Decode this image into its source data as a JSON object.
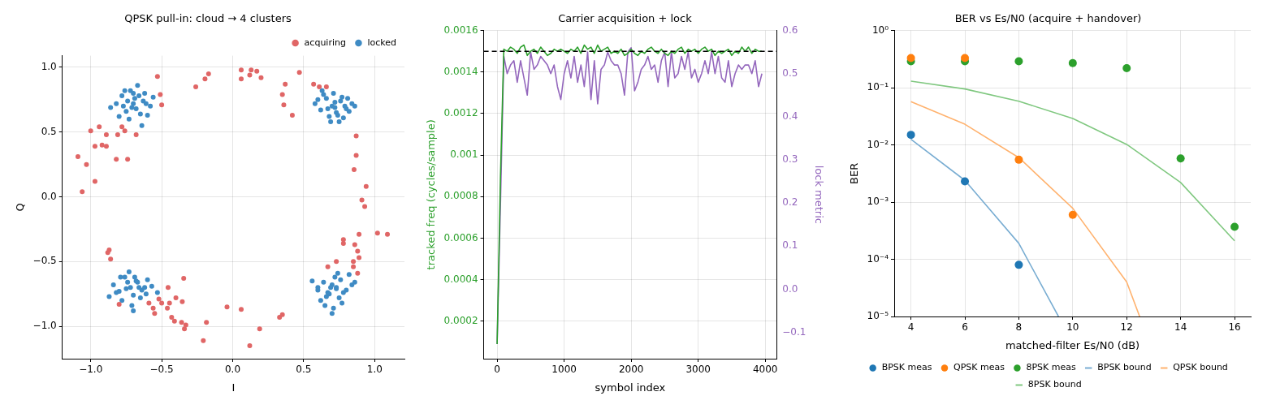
{
  "chart_data": [
    {
      "type": "scatter",
      "title": "QPSK pull-in: cloud → 4 clusters",
      "xlabel": "I",
      "ylabel": "Q",
      "xlim": [
        -1.2,
        1.21
      ],
      "ylim": [
        -1.25,
        1.09
      ],
      "xticks": [
        {
          "value": -1,
          "label": "−1.0"
        },
        {
          "value": -0.5,
          "label": "−0.5"
        },
        {
          "value": 0,
          "label": "0.0"
        },
        {
          "value": 0.5,
          "label": "0.5"
        },
        {
          "value": 1,
          "label": "1.0"
        }
      ],
      "yticks": [
        {
          "value": -1,
          "label": "−1.0"
        },
        {
          "value": -0.5,
          "label": "−0.5"
        },
        {
          "value": 0,
          "label": "0.0"
        },
        {
          "value": 0.5,
          "label": "0.5"
        },
        {
          "value": 1,
          "label": "1.0"
        }
      ],
      "grid": true,
      "legend": "top right",
      "marker": "circle",
      "series": [
        {
          "name": "acquiring",
          "color": "#e06666",
          "x": [
            -0.53,
            -0.26,
            -0.195,
            -0.17,
            0.06,
            0.13,
            0.06,
            0.12,
            0.17,
            0.2,
            0.37,
            0.35,
            0.36,
            0.42,
            0.47,
            0.87,
            0.87,
            0.855,
            0.94,
            0.91,
            0.93,
            0.89,
            1.02,
            1.09,
            0.78,
            0.78,
            0.86,
            0.88,
            0.89,
            0.85,
            0.85,
            0.88,
            0.73,
            0.67,
            -1.0,
            -0.94,
            -0.89,
            -0.97,
            -0.92,
            -0.89,
            -1.09,
            -1.03,
            -0.97,
            -1.06,
            -0.82,
            -0.74,
            -0.81,
            -0.76,
            -0.68,
            -0.78,
            -0.5,
            -0.51,
            -0.88,
            -0.87,
            -0.86,
            -0.345,
            -0.455,
            -0.4,
            -0.355,
            -0.52,
            -0.5,
            -0.445,
            -0.56,
            -0.55,
            -0.46,
            -0.43,
            -0.41,
            -0.36,
            -0.33,
            -0.34,
            -0.185,
            -0.207,
            -0.04,
            0.06,
            0.12,
            0.19,
            0.33,
            0.35,
            -0.8,
            -0.59,
            0.61,
            0.66,
            0.57
          ],
          "values": [
            0.93,
            0.85,
            0.91,
            0.95,
            0.98,
            0.98,
            0.91,
            0.94,
            0.97,
            0.92,
            0.87,
            0.79,
            0.71,
            0.63,
            0.96,
            0.47,
            0.32,
            0.21,
            0.08,
            -0.025,
            -0.075,
            -0.29,
            -0.28,
            -0.29,
            -0.33,
            -0.36,
            -0.37,
            -0.42,
            -0.47,
            -0.5,
            -0.54,
            -0.59,
            -0.5,
            -0.54,
            0.51,
            0.54,
            0.48,
            0.39,
            0.4,
            0.39,
            0.31,
            0.25,
            0.12,
            0.04,
            0.29,
            0.29,
            0.48,
            0.51,
            0.48,
            0.54,
            0.71,
            0.79,
            -0.43,
            -0.41,
            -0.48,
            -0.63,
            -0.7,
            -0.78,
            -0.81,
            -0.79,
            -0.82,
            -0.82,
            -0.86,
            -0.9,
            -0.86,
            -0.93,
            -0.96,
            -0.97,
            -0.99,
            -1.02,
            -0.97,
            -1.11,
            -0.85,
            -0.87,
            -1.15,
            -1.02,
            -0.93,
            -0.91,
            -0.83,
            -0.82,
            0.85,
            0.85,
            0.87
          ]
        },
        {
          "name": "locked",
          "color": "#3f8bc4",
          "x": [
            -0.82,
            -0.78,
            -0.75,
            -0.72,
            -0.7,
            -0.68,
            -0.66,
            -0.63,
            -0.6,
            -0.58,
            -0.77,
            -0.73,
            -0.69,
            -0.65,
            -0.62,
            -0.8,
            -0.74,
            -0.67,
            -0.61,
            -0.71,
            -0.64,
            -0.76,
            -0.7,
            -0.56,
            -0.86,
            0.58,
            0.62,
            0.66,
            0.7,
            0.73,
            0.76,
            0.8,
            0.84,
            0.64,
            0.68,
            0.72,
            0.75,
            0.79,
            0.82,
            0.6,
            0.67,
            0.71,
            0.77,
            0.74,
            0.69,
            0.86,
            0.63,
            0.78,
            0.81,
            0.72,
            -0.84,
            -0.8,
            -0.76,
            -0.72,
            -0.7,
            -0.67,
            -0.64,
            -0.6,
            -0.57,
            -0.78,
            -0.74,
            -0.69,
            -0.65,
            -0.62,
            -0.82,
            -0.71,
            -0.66,
            -0.75,
            -0.68,
            -0.73,
            -0.53,
            -0.87,
            -0.7,
            -0.61,
            -0.79,
            0.56,
            0.6,
            0.64,
            0.67,
            0.7,
            0.73,
            0.76,
            0.8,
            0.84,
            0.62,
            0.66,
            0.69,
            0.72,
            0.75,
            0.78,
            0.65,
            0.71,
            0.74,
            0.68,
            0.82,
            0.77,
            0.7,
            0.6,
            0.86,
            0.73
          ],
          "values": [
            0.72,
            0.78,
            0.66,
            0.82,
            0.72,
            0.68,
            0.78,
            0.74,
            0.63,
            0.7,
            0.7,
            0.6,
            0.76,
            0.64,
            0.8,
            0.62,
            0.74,
            0.86,
            0.72,
            0.69,
            0.55,
            0.82,
            0.8,
            0.77,
            0.69,
            0.72,
            0.67,
            0.76,
            0.7,
            0.65,
            0.74,
            0.68,
            0.72,
            0.79,
            0.62,
            0.73,
            0.58,
            0.7,
            0.66,
            0.75,
            0.68,
            0.8,
            0.77,
            0.63,
            0.58,
            0.7,
            0.82,
            0.61,
            0.76,
            0.69,
            -0.68,
            -0.73,
            -0.62,
            -0.7,
            -0.76,
            -0.66,
            -0.72,
            -0.64,
            -0.69,
            -0.8,
            -0.66,
            -0.62,
            -0.78,
            -0.7,
            -0.74,
            -0.84,
            -0.7,
            -0.71,
            -0.65,
            -0.58,
            -0.74,
            -0.77,
            -0.88,
            -0.75,
            -0.62,
            -0.65,
            -0.7,
            -0.66,
            -0.74,
            -0.68,
            -0.71,
            -0.64,
            -0.72,
            -0.68,
            -0.8,
            -0.77,
            -0.7,
            -0.62,
            -0.78,
            -0.74,
            -0.84,
            -0.86,
            -0.59,
            -0.75,
            -0.6,
            -0.82,
            -0.9,
            -0.72,
            -0.66,
            -0.7
          ]
        }
      ]
    },
    {
      "type": "line",
      "title": "Carrier acquisition + lock",
      "xlabel": "symbol index",
      "ylabel": "tracked freq (cycles/sample)",
      "y2label": "lock metric",
      "xlim": [
        -200,
        4170
      ],
      "xticks": [
        0,
        1000,
        2000,
        3000,
        4000
      ],
      "ylim": [
        2e-05,
        0.0016
      ],
      "yticks": [
        0.0002,
        0.0004,
        0.0006,
        0.0008,
        0.001,
        0.0012,
        0.0014,
        0.0016
      ],
      "y2lim": [
        -0.161,
        0.6
      ],
      "y2ticks": [
        {
          "value": -0.1,
          "label": "−0.1"
        },
        {
          "value": 0,
          "label": "0.0"
        },
        {
          "value": 0.1,
          "label": "0.1"
        },
        {
          "value": 0.2,
          "label": "0.2"
        },
        {
          "value": 0.3,
          "label": "0.3"
        },
        {
          "value": 0.4,
          "label": "0.4"
        },
        {
          "value": 0.5,
          "label": "0.5"
        },
        {
          "value": 0.6,
          "label": "0.6"
        }
      ],
      "grid": true,
      "x": [
        0,
        50,
        100,
        150,
        200,
        250,
        300,
        350,
        400,
        450,
        500,
        550,
        600,
        650,
        700,
        750,
        800,
        850,
        900,
        950,
        1000,
        1050,
        1100,
        1150,
        1200,
        1250,
        1300,
        1350,
        1400,
        1450,
        1500,
        1550,
        1600,
        1650,
        1700,
        1750,
        1800,
        1850,
        1900,
        1950,
        2000,
        2050,
        2100,
        2150,
        2200,
        2250,
        2300,
        2350,
        2400,
        2450,
        2500,
        2550,
        2600,
        2650,
        2700,
        2750,
        2800,
        2850,
        2900,
        2950,
        3000,
        3050,
        3100,
        3150,
        3200,
        3250,
        3300,
        3350,
        3400,
        3450,
        3500,
        3550,
        3600,
        3650,
        3700,
        3750,
        3800,
        3850,
        3900,
        3950
      ],
      "ref_lines": [
        {
          "axis": "y",
          "value": 0.0015,
          "color": "#000000",
          "line_style": "dashed"
        }
      ],
      "series": [
        {
          "color": "#2ca02c",
          "axis": "y",
          "values": [
            9e-05,
            0.0009,
            0.00151,
            0.0015,
            0.00152,
            0.00151,
            0.00149,
            0.00152,
            0.00153,
            0.00148,
            0.0015,
            0.00151,
            0.00149,
            0.00152,
            0.0015,
            0.00148,
            0.00149,
            0.00151,
            0.0015,
            0.00151,
            0.0015,
            0.00149,
            0.00151,
            0.0015,
            0.00152,
            0.00149,
            0.00153,
            0.00151,
            0.00152,
            0.00149,
            0.00153,
            0.0015,
            0.00151,
            0.00152,
            0.00149,
            0.0015,
            0.00149,
            0.00151,
            0.00148,
            0.00149,
            0.00151,
            0.00149,
            0.00148,
            0.0015,
            0.00149,
            0.00151,
            0.00152,
            0.0015,
            0.00149,
            0.00151,
            0.00149,
            0.00148,
            0.0015,
            0.00149,
            0.00151,
            0.00152,
            0.00149,
            0.00151,
            0.0015,
            0.00151,
            0.00149,
            0.00151,
            0.00152,
            0.0015,
            0.00151,
            0.00148,
            0.0015,
            0.00149,
            0.0015,
            0.00151,
            0.00148,
            0.0015,
            0.00149,
            0.00152,
            0.0015,
            0.00152,
            0.00149,
            0.00151,
            0.0015,
            0.0015
          ]
        },
        {
          "color": "#9467bd",
          "axis": "y2",
          "values": [
            -0.127,
            0.2,
            0.54,
            0.5,
            0.52,
            0.53,
            0.48,
            0.53,
            0.49,
            0.45,
            0.55,
            0.51,
            0.52,
            0.54,
            0.53,
            0.52,
            0.5,
            0.52,
            0.47,
            0.44,
            0.5,
            0.53,
            0.49,
            0.54,
            0.48,
            0.52,
            0.47,
            0.55,
            0.44,
            0.53,
            0.43,
            0.51,
            0.52,
            0.55,
            0.53,
            0.52,
            0.52,
            0.5,
            0.45,
            0.55,
            0.56,
            0.46,
            0.48,
            0.51,
            0.52,
            0.54,
            0.51,
            0.52,
            0.48,
            0.53,
            0.55,
            0.47,
            0.55,
            0.49,
            0.5,
            0.54,
            0.51,
            0.55,
            0.49,
            0.51,
            0.48,
            0.5,
            0.53,
            0.5,
            0.55,
            0.5,
            0.54,
            0.49,
            0.48,
            0.53,
            0.47,
            0.5,
            0.52,
            0.51,
            0.52,
            0.52,
            0.5,
            0.53,
            0.47,
            0.5
          ]
        }
      ]
    },
    {
      "type": "line",
      "title": "BER vs Es/N0 (acquire + handover)",
      "xlabel": "matched-filter Es/N0 (dB)",
      "ylabel": "BER",
      "log": "y",
      "xlim": [
        3.38,
        16.6
      ],
      "xticks": [
        4,
        6,
        8,
        10,
        12,
        14,
        16
      ],
      "ylim": [
        1e-05,
        1
      ],
      "yticks": [
        {
          "value": 1e-05,
          "label": "10⁻⁵"
        },
        {
          "value": 0.0001,
          "label": "10⁻⁴"
        },
        {
          "value": 0.001,
          "label": "10⁻³"
        },
        {
          "value": 0.01,
          "label": "10⁻²"
        },
        {
          "value": 0.1,
          "label": "10⁻¹"
        },
        {
          "value": 1,
          "label": "10⁰"
        }
      ],
      "grid": true,
      "legend": "bottom",
      "marker": "circle",
      "series": [
        {
          "name": "BPSK meas",
          "type": "scatter",
          "color": "#1f77b4",
          "x": [
            4,
            6,
            8
          ],
          "values": [
            0.015,
            0.0023,
            8e-05
          ]
        },
        {
          "name": "QPSK meas",
          "type": "scatter",
          "color": "#ff7f0e",
          "x": [
            4,
            6,
            8,
            10
          ],
          "values": [
            0.33,
            0.33,
            0.0055,
            0.0006
          ]
        },
        {
          "name": "8PSK meas",
          "type": "scatter",
          "color": "#2ca02c",
          "x": [
            4,
            6,
            8,
            10,
            12,
            14,
            16
          ],
          "values": [
            0.29,
            0.29,
            0.29,
            0.27,
            0.22,
            0.0058,
            0.00037
          ]
        },
        {
          "name": "BPSK bound",
          "type": "line",
          "color": "#79add2",
          "marker": "none",
          "x": [
            4,
            6,
            8,
            9.47
          ],
          "values": [
            0.0125,
            0.0024,
            0.00019,
            1e-05
          ]
        },
        {
          "name": "QPSK bound",
          "type": "line",
          "color": "#ffb26e",
          "marker": "none",
          "x": [
            4,
            6,
            8,
            10,
            12,
            12.48
          ],
          "values": [
            0.057,
            0.023,
            0.006,
            0.00078,
            4e-05,
            1e-05
          ]
        },
        {
          "name": "8PSK bound",
          "type": "line",
          "color": "#80c880",
          "marker": "none",
          "x": [
            4,
            6,
            8,
            10,
            12,
            14,
            16
          ],
          "values": [
            0.13,
            0.095,
            0.058,
            0.029,
            0.0102,
            0.0022,
            0.00021
          ]
        }
      ]
    }
  ]
}
